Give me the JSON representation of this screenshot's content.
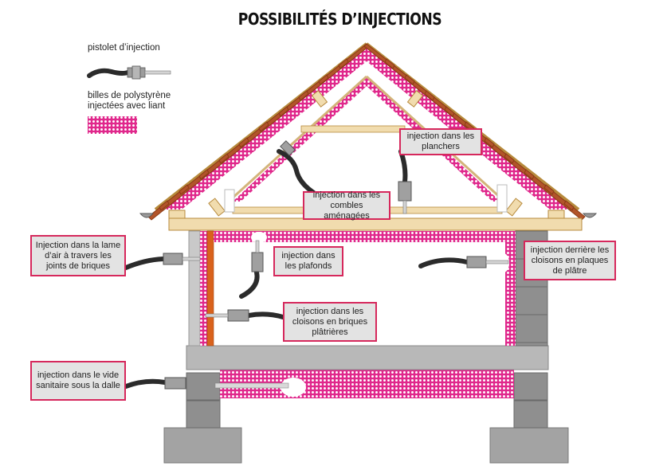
{
  "title": "POSSIBILITÉS D’INJECTIONS",
  "legend": {
    "gun_label": "pistolet d’injection",
    "foam_label": "billes de polystyrène injectées avec liant"
  },
  "labels": {
    "planchers": "injection dans les planchers",
    "combles": "injection dans les combles aménagées",
    "lame_air": "Injection dans la lame d’air à travers les joints de briques",
    "plafonds": "injection dans les plafonds",
    "cloisons_platre": "injection derrière les cloisons en plaques de plâtre",
    "cloisons_briques": "injection dans les cloisons en briques plâtrières",
    "vide_sanitaire": "injection dans le vide sanitaire sous la dalle"
  },
  "colors": {
    "foam_pink": "#e0288c",
    "label_border": "#d6285c",
    "label_bg": "#e3e3e3",
    "wood": "#f1dcae",
    "roof_tile": "#b2542a",
    "concrete": "#b8b8b8"
  }
}
